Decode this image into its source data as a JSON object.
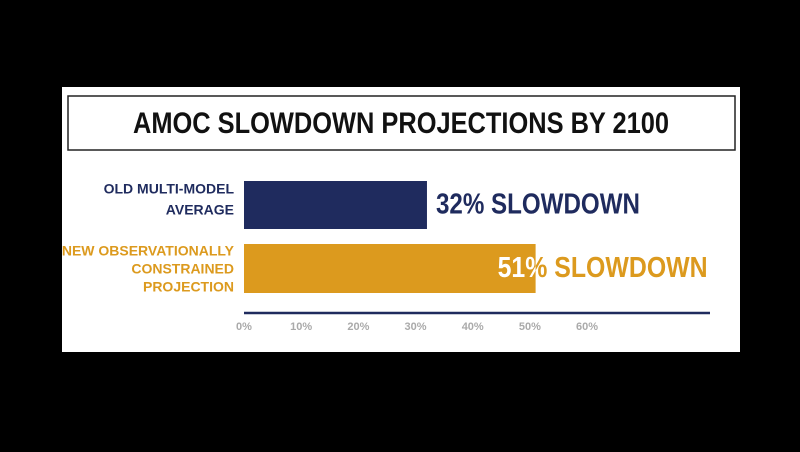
{
  "chart_data": {
    "type": "hbar",
    "title": "AMOC SLOWDOWN PROJECTIONS BY 2100",
    "categories": [
      [
        "OLD MULTI-MODEL",
        "AVERAGE"
      ],
      [
        "NEW OBSERVATIONALLY",
        "CONSTRAINED",
        "PROJECTION"
      ]
    ],
    "values": [
      32,
      51
    ],
    "value_labels": [
      "32% SLOWDOWN",
      "51% SLOWDOWN"
    ],
    "colors": [
      "#1f2b5e",
      "#dc9a1e"
    ],
    "xlim": [
      0,
      81.5
    ],
    "xticks": [
      {
        "value": 0,
        "label": "0%"
      },
      {
        "value": 10,
        "label": "10%"
      },
      {
        "value": 20,
        "label": "20%"
      },
      {
        "value": 30,
        "label": "30%"
      },
      {
        "value": 40,
        "label": "40%"
      },
      {
        "value": 50,
        "label": "50%"
      },
      {
        "value": 60,
        "label": "60%"
      }
    ],
    "grid": false
  }
}
